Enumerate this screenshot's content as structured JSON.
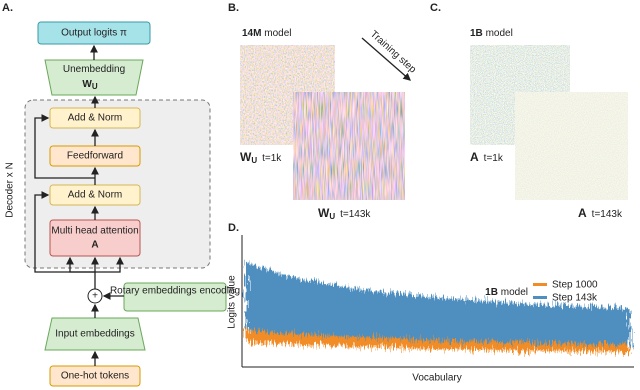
{
  "panels": {
    "a": "A.",
    "b": "B.",
    "c": "C.",
    "d": "D."
  },
  "diagram": {
    "output": "Output logits π",
    "unembedding": {
      "label": "Unembedding",
      "symbol": "W",
      "sub": "U"
    },
    "add_norm_top": "Add & Norm",
    "feedforward": "Feedforward",
    "add_norm_bottom": "Add & Norm",
    "attention": {
      "label": "Multi head attention",
      "symbol": "A"
    },
    "plus": "+",
    "rotary": "Rotary embeddings encoding",
    "input": "Input embeddings",
    "tokens": "One-hot tokens",
    "decoder": "Decoder x N"
  },
  "panel_b": {
    "model_size": "14M",
    "model": "model",
    "arrow": "Training step",
    "first": {
      "symbol": "W",
      "sub": "U",
      "step": "t=1k"
    },
    "second": {
      "symbol": "W",
      "sub": "U",
      "step": "t=143k"
    }
  },
  "panel_c": {
    "model_size": "1B",
    "model": "model",
    "first": {
      "symbol": "A",
      "step": "t=1k"
    },
    "second": {
      "symbol": "A",
      "step": "t=143k"
    }
  },
  "panel_d": {
    "model_size": "1B",
    "model": "model",
    "legend": [
      "Step 1000",
      "Step 143k"
    ],
    "y_label": "Logits value",
    "x_label": "Vocabulary"
  }
}
